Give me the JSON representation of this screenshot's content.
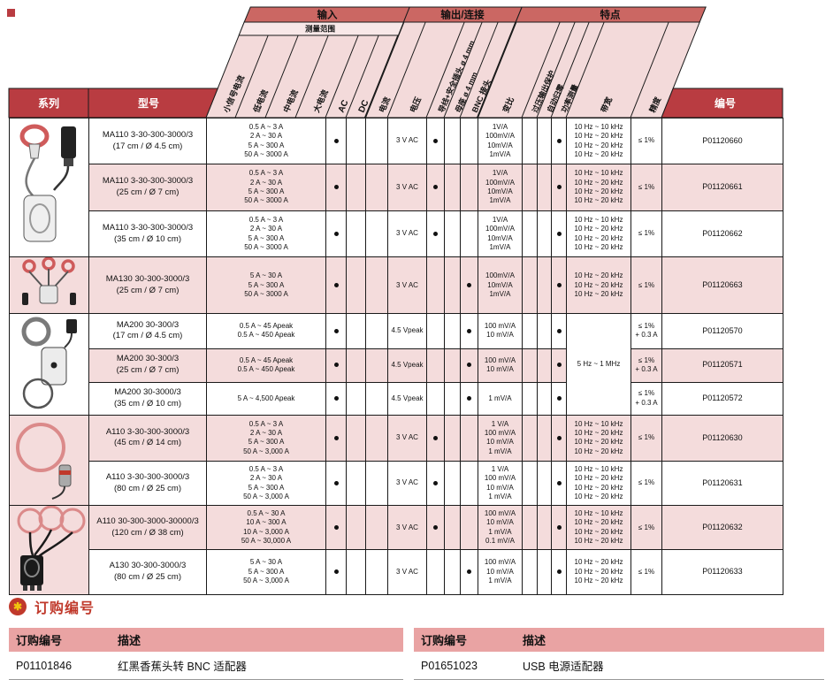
{
  "spec_table": {
    "band_labels": [
      "输入",
      "输出/连接",
      "特点"
    ],
    "range_band_label": "测量范围",
    "corner_headers": {
      "series": "系列",
      "model": "型号",
      "part_number": "编号"
    },
    "slanted_columns": [
      "小信号电流",
      "低电流",
      "中电流",
      "大电流",
      "AC",
      "DC",
      "电流",
      "电压",
      "导线+安全插头 ø 4 mm",
      "母座 ø 4 mm",
      "BNC 接头",
      "变比",
      "过压输出保护",
      "自动归零",
      "功率测量",
      "带宽",
      "精度"
    ],
    "product_images": [
      "ma110-clamp",
      "ma130-three-clamps",
      "ma200-clamp",
      "a110-flex-ring",
      "a110-three-flex-rings"
    ],
    "rows": [
      {
        "model": "MA110 3-30-300-3000/3",
        "size": "(17 cm / Ø 4.5 cm)",
        "ranges": [
          "0.5 A ~ 3 A",
          "2 A ~ 30 A",
          "5 A ~ 300 A",
          "50 A ~ 3000 A"
        ],
        "ac": true,
        "dc": false,
        "out_current": "",
        "out_voltage": "3 V AC",
        "lead_plug": true,
        "socket": false,
        "bnc": false,
        "ratios": [
          "1V/A",
          "100mV/A",
          "10mV/A",
          "1mV/A"
        ],
        "overload_protect": false,
        "auto_zero": false,
        "power_measure": true,
        "bandwidth": [
          "10 Hz ~ 10 kHz",
          "10 Hz ~ 20 kHz",
          "10 Hz ~ 20 kHz",
          "10 Hz ~ 20 kHz"
        ],
        "accuracy": [
          "≤ 1%"
        ],
        "part_number": "P01120660",
        "shade": false
      },
      {
        "model": "MA110 3-30-300-3000/3",
        "size": "(25 cm / Ø 7 cm)",
        "ranges": [
          "0.5 A ~ 3 A",
          "2 A ~ 30 A",
          "5 A ~ 300 A",
          "50 A ~ 3000 A"
        ],
        "ac": true,
        "dc": false,
        "out_current": "",
        "out_voltage": "3 V AC",
        "lead_plug": true,
        "socket": false,
        "bnc": false,
        "ratios": [
          "1V/A",
          "100mV/A",
          "10mV/A",
          "1mV/A"
        ],
        "overload_protect": false,
        "auto_zero": false,
        "power_measure": true,
        "bandwidth": [
          "10 Hz ~ 10 kHz",
          "10 Hz ~ 20 kHz",
          "10 Hz ~ 20 kHz",
          "10 Hz ~ 20 kHz"
        ],
        "accuracy": [
          "≤ 1%"
        ],
        "part_number": "P01120661",
        "shade": true
      },
      {
        "model": "MA110 3-30-300-3000/3",
        "size": "(35 cm / Ø 10 cm)",
        "ranges": [
          "0.5 A ~ 3 A",
          "2 A ~ 30 A",
          "5 A ~ 300 A",
          "50 A ~ 3000 A"
        ],
        "ac": true,
        "dc": false,
        "out_current": "",
        "out_voltage": "3 V AC",
        "lead_plug": true,
        "socket": false,
        "bnc": false,
        "ratios": [
          "1V/A",
          "100mV/A",
          "10mV/A",
          "1mV/A"
        ],
        "overload_protect": false,
        "auto_zero": false,
        "power_measure": true,
        "bandwidth": [
          "10 Hz ~ 10 kHz",
          "10 Hz ~ 20 kHz",
          "10 Hz ~ 20 kHz",
          "10 Hz ~ 20 kHz"
        ],
        "accuracy": [
          "≤ 1%"
        ],
        "part_number": "P01120662",
        "shade": false
      },
      {
        "model": "MA130 30-300-3000/3",
        "size": "(25 cm / Ø 7 cm)",
        "ranges": [
          "5 A ~ 30 A",
          "5 A ~ 300 A",
          "50 A ~ 3000 A"
        ],
        "ac": true,
        "dc": false,
        "out_current": "",
        "out_voltage": "3 V AC",
        "lead_plug": false,
        "socket": false,
        "bnc": true,
        "ratios": [
          "100mV/A",
          "10mV/A",
          "1mV/A"
        ],
        "overload_protect": false,
        "auto_zero": false,
        "power_measure": true,
        "bandwidth": [
          "10 Hz ~ 20 kHz",
          "10 Hz ~ 20 kHz",
          "10 Hz ~ 20 kHz"
        ],
        "accuracy": [
          "≤ 1%"
        ],
        "part_number": "P01120663",
        "shade": true
      },
      {
        "model": "MA200 30-300/3",
        "size": "(17 cm / Ø 4.5 cm)",
        "ranges": [
          "0.5 A ~ 45 Apeak",
          "0.5 A ~ 450 Apeak"
        ],
        "ac": true,
        "dc": false,
        "out_current": "",
        "out_voltage": "4.5 Vpeak",
        "lead_plug": false,
        "socket": false,
        "bnc": true,
        "ratios": [
          "100 mV/A",
          "10 mV/A"
        ],
        "overload_protect": false,
        "auto_zero": false,
        "power_measure": true,
        "bandwidth": [
          "5 Hz ~ 1 MHz"
        ],
        "bandwidth_rowspan": 3,
        "accuracy": [
          "≤ 1%",
          "+ 0.3 A"
        ],
        "part_number": "P01120570",
        "shade": false
      },
      {
        "model": "MA200 30-300/3",
        "size": "(25 cm / Ø 7 cm)",
        "ranges": [
          "0.5 A ~ 45 Apeak",
          "0.5 A ~ 450 Apeak"
        ],
        "ac": true,
        "dc": false,
        "out_current": "",
        "out_voltage": "4.5 Vpeak",
        "lead_plug": false,
        "socket": false,
        "bnc": true,
        "ratios": [
          "100 mV/A",
          "10 mV/A"
        ],
        "overload_protect": false,
        "auto_zero": false,
        "power_measure": true,
        "bandwidth": null,
        "accuracy": [
          "≤ 1%",
          "+ 0.3 A"
        ],
        "part_number": "P01120571",
        "shade": true
      },
      {
        "model": "MA200 30-3000/3",
        "size": "(35 cm / Ø 10 cm)",
        "ranges": [
          "5 A ~ 4,500 Apeak"
        ],
        "ac": true,
        "dc": false,
        "out_current": "",
        "out_voltage": "4.5 Vpeak",
        "lead_plug": false,
        "socket": false,
        "bnc": true,
        "ratios": [
          "1 mV/A"
        ],
        "overload_protect": false,
        "auto_zero": false,
        "power_measure": true,
        "bandwidth": null,
        "accuracy": [
          "≤ 1%",
          "+ 0.3 A"
        ],
        "part_number": "P01120572",
        "shade": false
      },
      {
        "model": "A110 3-30-300-3000/3",
        "size": "(45 cm / Ø 14 cm)",
        "ranges": [
          "0.5 A ~ 3 A",
          "2 A ~ 30 A",
          "5 A ~ 300 A",
          "50 A ~ 3,000 A"
        ],
        "ac": true,
        "dc": false,
        "out_current": "",
        "out_voltage": "3 V AC",
        "lead_plug": true,
        "socket": false,
        "bnc": false,
        "ratios": [
          "1 V/A",
          "100 mV/A",
          "10 mV/A",
          "1 mV/A"
        ],
        "overload_protect": false,
        "auto_zero": false,
        "power_measure": true,
        "bandwidth": [
          "10 Hz ~ 10 kHz",
          "10 Hz ~ 20 kHz",
          "10 Hz ~ 20 kHz",
          "10 Hz ~ 20 kHz"
        ],
        "accuracy": [
          "≤ 1%"
        ],
        "part_number": "P01120630",
        "shade": true
      },
      {
        "model": "A110 3-30-300-3000/3",
        "size": "(80 cm / Ø 25 cm)",
        "ranges": [
          "0.5 A ~ 3 A",
          "2 A ~ 30 A",
          "5 A ~ 300 A",
          "50 A ~ 3,000 A"
        ],
        "ac": true,
        "dc": false,
        "out_current": "",
        "out_voltage": "3 V AC",
        "lead_plug": true,
        "socket": false,
        "bnc": false,
        "ratios": [
          "1 V/A",
          "100 mV/A",
          "10 mV/A",
          "1 mV/A"
        ],
        "overload_protect": false,
        "auto_zero": false,
        "power_measure": true,
        "bandwidth": [
          "10 Hz ~ 10 kHz",
          "10 Hz ~ 20 kHz",
          "10 Hz ~ 20 kHz",
          "10 Hz ~ 20 kHz"
        ],
        "accuracy": [
          "≤ 1%"
        ],
        "part_number": "P01120631",
        "shade": false
      },
      {
        "model": "A110 30-300-3000-30000/3",
        "size": "(120 cm / Ø 38 cm)",
        "ranges": [
          "0.5 A ~ 30 A",
          "10 A ~ 300 A",
          "10 A ~ 3,000 A",
          "50 A ~ 30,000 A"
        ],
        "ac": true,
        "dc": false,
        "out_current": "",
        "out_voltage": "3 V AC",
        "lead_plug": true,
        "socket": false,
        "bnc": false,
        "ratios": [
          "100 mV/A",
          "10 mV/A",
          "1 mV/A",
          "0.1 mV/A"
        ],
        "overload_protect": false,
        "auto_zero": false,
        "power_measure": true,
        "bandwidth": [
          "10 Hz ~ 10 kHz",
          "10 Hz ~ 20 kHz",
          "10 Hz ~ 20 kHz",
          "10 Hz ~ 20 kHz"
        ],
        "accuracy": [
          "≤ 1%"
        ],
        "part_number": "P01120632",
        "shade": true
      },
      {
        "model": "A130 30-300-3000/3",
        "size": "(80 cm / Ø 25 cm)",
        "ranges": [
          "5 A ~ 30 A",
          "5 A ~ 300 A",
          "50 A ~ 3,000 A"
        ],
        "ac": true,
        "dc": false,
        "out_current": "",
        "out_voltage": "3 V AC",
        "lead_plug": false,
        "socket": false,
        "bnc": true,
        "ratios": [
          "100 mV/A",
          "10 mV/A",
          "1 mV/A"
        ],
        "overload_protect": false,
        "auto_zero": false,
        "power_measure": true,
        "bandwidth": [
          "10 Hz ~ 20 kHz",
          "10 Hz ~ 20 kHz",
          "10 Hz ~ 20 kHz"
        ],
        "accuracy": [
          "≤ 1%"
        ],
        "part_number": "P01120633",
        "shade": false
      }
    ]
  },
  "order_section": {
    "heading": "订购编号",
    "tables": [
      {
        "headers": [
          "订购编号",
          "描述"
        ],
        "rows": [
          {
            "code": "P01101846",
            "desc": "红黑香蕉头转 BNC 适配器"
          }
        ]
      },
      {
        "headers": [
          "订购编号",
          "描述"
        ],
        "rows": [
          {
            "code": "P01651023",
            "desc": "USB 电源适配器"
          }
        ]
      }
    ]
  },
  "colors": {
    "header_red": "#b93c41",
    "band_red": "#cb6763",
    "row_pink": "#f4dcdc",
    "slant_pink": "#f3dada",
    "strip_pink": "#f8e8e8",
    "order_header_pink": "#e9a3a3",
    "accent_red": "#c0392b",
    "puzzle_yellow": "#f1c40f"
  }
}
